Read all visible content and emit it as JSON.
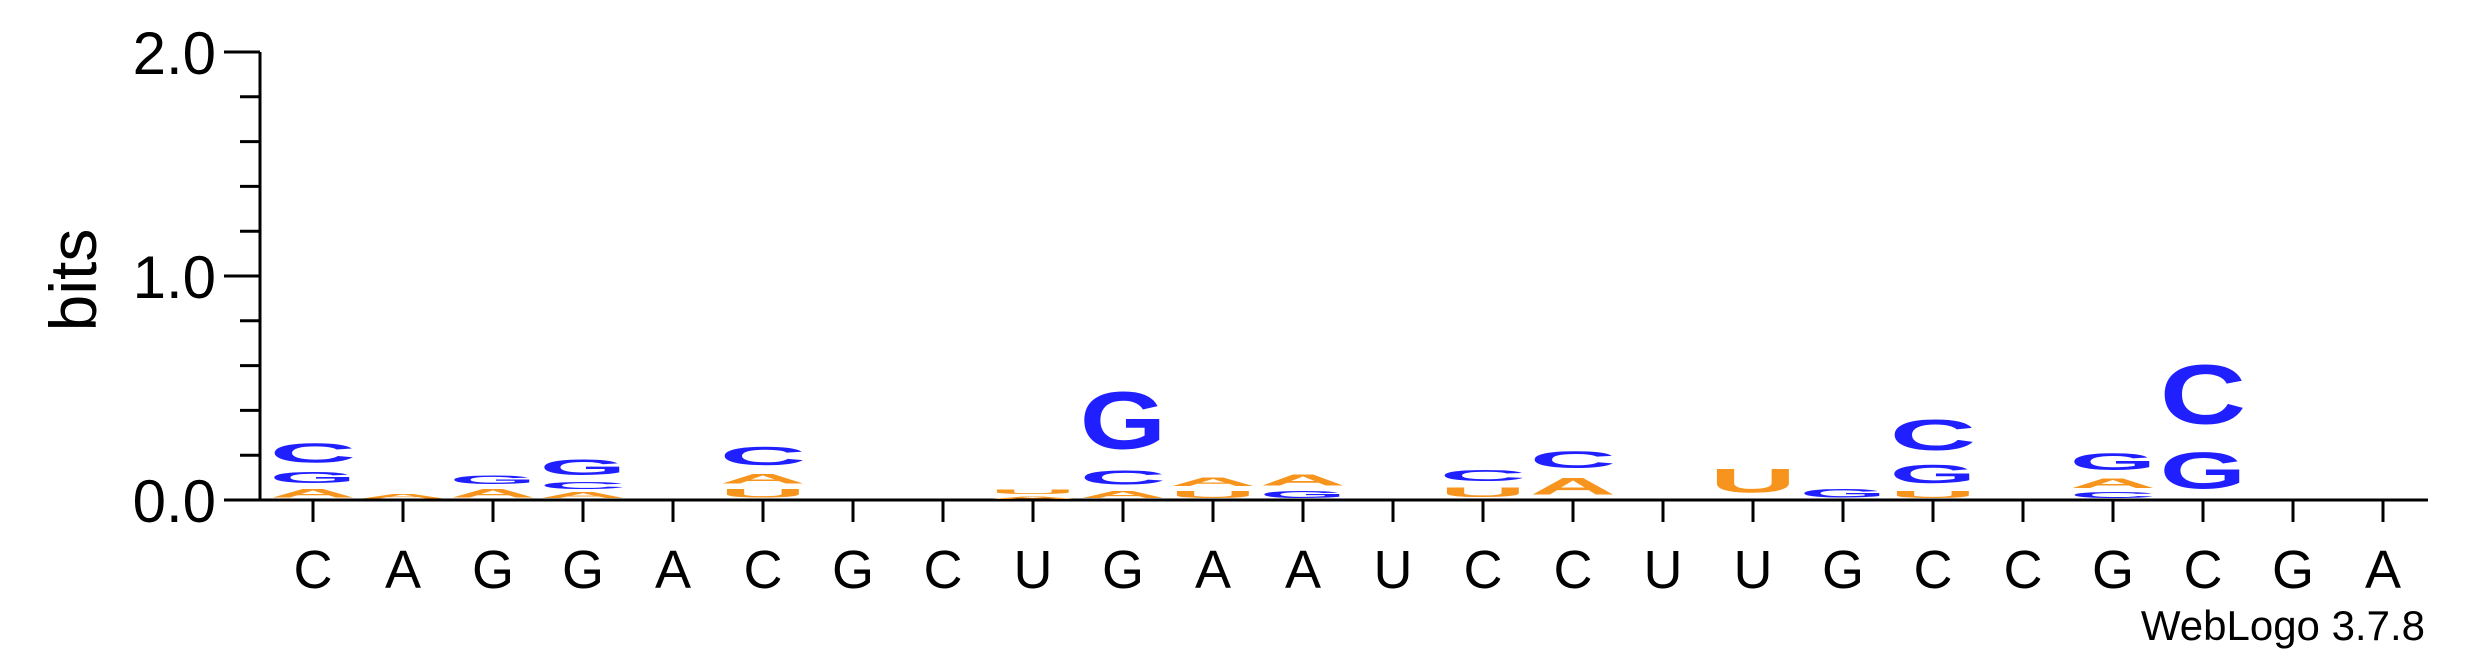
{
  "chart_data": {
    "type": "sequence-logo",
    "ylabel": "bits",
    "ylim": [
      0,
      2.0
    ],
    "yticks": [
      "0.0",
      "1.0",
      "2.0"
    ],
    "footer": "WebLogo 3.7.8",
    "colors": {
      "A": "#f7941d",
      "U": "#f7941d",
      "C": "#1f1fff",
      "G": "#1f1fff"
    },
    "positions": [
      {
        "consensus": "C",
        "stack": [
          {
            "letter": "A",
            "bits": 0.06
          },
          {
            "letter": "G",
            "bits": 0.08
          },
          {
            "letter": "C",
            "bits": 0.14
          }
        ]
      },
      {
        "consensus": "A",
        "stack": [
          {
            "letter": "A",
            "bits": 0.03
          }
        ]
      },
      {
        "consensus": "G",
        "stack": [
          {
            "letter": "A",
            "bits": 0.06
          },
          {
            "letter": "G",
            "bits": 0.06
          }
        ]
      },
      {
        "consensus": "G",
        "stack": [
          {
            "letter": "A",
            "bits": 0.04
          },
          {
            "letter": "C",
            "bits": 0.05
          },
          {
            "letter": "G",
            "bits": 0.11
          }
        ]
      },
      {
        "consensus": "A",
        "stack": []
      },
      {
        "consensus": "C",
        "stack": [
          {
            "letter": "U",
            "bits": 0.06
          },
          {
            "letter": "A",
            "bits": 0.07
          },
          {
            "letter": "C",
            "bits": 0.13
          }
        ]
      },
      {
        "consensus": "G",
        "stack": []
      },
      {
        "consensus": "C",
        "stack": []
      },
      {
        "consensus": "U",
        "stack": [
          {
            "letter": "A",
            "bits": 0.02
          },
          {
            "letter": "U",
            "bits": 0.03
          }
        ]
      },
      {
        "consensus": "G",
        "stack": [
          {
            "letter": "A",
            "bits": 0.05
          },
          {
            "letter": "C",
            "bits": 0.1
          },
          {
            "letter": "G",
            "bits": 0.41
          }
        ]
      },
      {
        "consensus": "A",
        "stack": [
          {
            "letter": "U",
            "bits": 0.05
          },
          {
            "letter": "A",
            "bits": 0.06
          }
        ]
      },
      {
        "consensus": "A",
        "stack": [
          {
            "letter": "G",
            "bits": 0.05
          },
          {
            "letter": "A",
            "bits": 0.08
          }
        ]
      },
      {
        "consensus": "U",
        "stack": []
      },
      {
        "consensus": "C",
        "stack": [
          {
            "letter": "U",
            "bits": 0.07
          },
          {
            "letter": "C",
            "bits": 0.08
          }
        ]
      },
      {
        "consensus": "C",
        "stack": [
          {
            "letter": "A",
            "bits": 0.12
          },
          {
            "letter": "C",
            "bits": 0.12
          }
        ]
      },
      {
        "consensus": "U",
        "stack": []
      },
      {
        "consensus": "U",
        "stack": [
          {
            "letter": "U",
            "bits": 0.17
          }
        ]
      },
      {
        "consensus": "G",
        "stack": [
          {
            "letter": "G",
            "bits": 0.06
          }
        ]
      },
      {
        "consensus": "C",
        "stack": [
          {
            "letter": "U",
            "bits": 0.05
          },
          {
            "letter": "G",
            "bits": 0.13
          },
          {
            "letter": "C",
            "bits": 0.22
          }
        ]
      },
      {
        "consensus": "C",
        "stack": []
      },
      {
        "consensus": "G",
        "stack": [
          {
            "letter": "C",
            "bits": 0.04
          },
          {
            "letter": "A",
            "bits": 0.07
          },
          {
            "letter": "G",
            "bits": 0.12
          }
        ]
      },
      {
        "consensus": "C",
        "stack": [
          {
            "letter": "G",
            "bits": 0.26
          },
          {
            "letter": "C",
            "bits": 0.42
          }
        ]
      },
      {
        "consensus": "G",
        "stack": []
      },
      {
        "consensus": "A",
        "stack": []
      }
    ]
  }
}
